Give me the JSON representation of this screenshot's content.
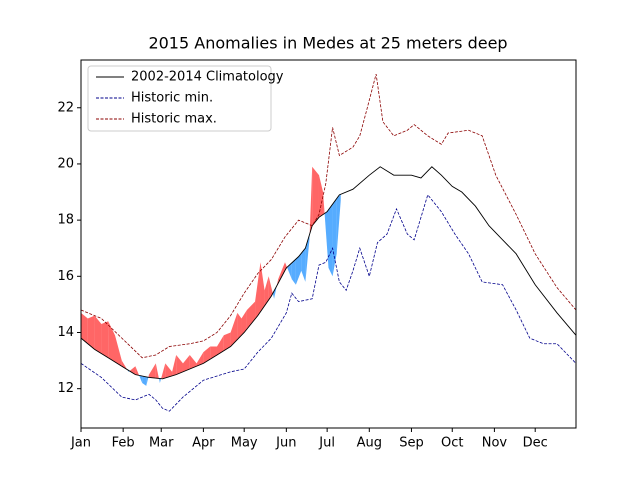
{
  "chart_data": {
    "type": "line",
    "title": "2015 Anomalies in Medes at 25 meters deep",
    "xlim": [
      0,
      364
    ],
    "ylim": [
      10.6,
      23.7
    ],
    "xticks": [
      {
        "value": 0,
        "label": "Jan"
      },
      {
        "value": 31,
        "label": "Feb"
      },
      {
        "value": 59,
        "label": "Mar"
      },
      {
        "value": 90,
        "label": "Apr"
      },
      {
        "value": 120,
        "label": "May"
      },
      {
        "value": 151,
        "label": "Jun"
      },
      {
        "value": 181,
        "label": "Jul"
      },
      {
        "value": 212,
        "label": "Aug"
      },
      {
        "value": 243,
        "label": "Sep"
      },
      {
        "value": 273,
        "label": "Oct"
      },
      {
        "value": 304,
        "label": "Nov"
      },
      {
        "value": 334,
        "label": "Dec"
      }
    ],
    "yticks": [
      12,
      14,
      16,
      18,
      20,
      22
    ],
    "legend": "upper left",
    "series": [
      {
        "name": "2002-2014 Climatology",
        "color": "#000000",
        "style": "solid",
        "x": [
          0,
          10,
          20,
          30,
          40,
          50,
          60,
          70,
          80,
          90,
          100,
          110,
          120,
          130,
          140,
          151,
          160,
          165,
          170,
          175,
          181,
          190,
          200,
          212,
          220,
          230,
          243,
          250,
          258,
          265,
          273,
          280,
          290,
          300,
          310,
          320,
          334,
          350,
          364
        ],
        "values": [
          13.8,
          13.4,
          13.1,
          12.8,
          12.5,
          12.4,
          12.35,
          12.5,
          12.7,
          12.9,
          13.2,
          13.5,
          14.0,
          14.6,
          15.3,
          16.3,
          16.7,
          17.0,
          17.8,
          18.1,
          18.3,
          18.9,
          19.1,
          19.6,
          19.9,
          19.6,
          19.6,
          19.5,
          19.9,
          19.6,
          19.2,
          19.0,
          18.5,
          17.8,
          17.3,
          16.8,
          15.7,
          14.7,
          13.9
        ]
      },
      {
        "name": "Historic min.",
        "color": "#00008b",
        "style": "dashed",
        "x": [
          0,
          15,
          30,
          40,
          50,
          55,
          60,
          65,
          75,
          90,
          110,
          120,
          130,
          140,
          151,
          155,
          160,
          170,
          175,
          180,
          185,
          190,
          195,
          200,
          205,
          212,
          218,
          225,
          232,
          240,
          245,
          255,
          265,
          275,
          285,
          295,
          310,
          320,
          330,
          340,
          350,
          364
        ],
        "values": [
          12.9,
          12.4,
          11.7,
          11.6,
          11.8,
          11.6,
          11.3,
          11.2,
          11.7,
          12.3,
          12.6,
          12.7,
          13.3,
          13.8,
          14.7,
          15.4,
          15.1,
          15.2,
          16.4,
          16.5,
          17.0,
          15.8,
          15.5,
          16.2,
          17.0,
          16.0,
          17.2,
          17.5,
          18.4,
          17.5,
          17.3,
          18.9,
          18.3,
          17.5,
          16.8,
          15.8,
          15.7,
          14.8,
          13.8,
          13.6,
          13.6,
          12.9
        ]
      },
      {
        "name": "Historic max.",
        "color": "#8b0000",
        "style": "dashed",
        "x": [
          0,
          15,
          30,
          45,
          55,
          65,
          80,
          90,
          100,
          110,
          120,
          130,
          140,
          150,
          160,
          170,
          175,
          180,
          185,
          190,
          200,
          205,
          210,
          217,
          222,
          230,
          240,
          245,
          255,
          265,
          270,
          285,
          295,
          305,
          320,
          334,
          350,
          364
        ],
        "values": [
          14.8,
          14.5,
          13.8,
          13.1,
          13.2,
          13.5,
          13.6,
          13.7,
          14.0,
          14.6,
          15.4,
          16.1,
          16.6,
          17.4,
          18.0,
          17.8,
          18.2,
          19.3,
          21.3,
          20.3,
          20.6,
          21.0,
          21.9,
          23.2,
          21.5,
          21.0,
          21.2,
          21.4,
          21.0,
          20.7,
          21.1,
          21.2,
          21.0,
          19.6,
          18.2,
          16.8,
          15.6,
          14.8
        ]
      }
    ],
    "anomaly": {
      "above_color": "#ff3333",
      "below_color": "#1e90ff",
      "x": [
        0,
        5,
        10,
        15,
        20,
        25,
        30,
        35,
        40,
        45,
        48,
        50,
        55,
        58,
        62,
        67,
        70,
        75,
        80,
        85,
        90,
        95,
        100,
        105,
        110,
        115,
        118,
        122,
        128,
        132,
        135,
        138,
        142,
        145,
        150,
        155,
        158,
        162,
        165,
        168,
        170,
        175,
        178,
        182,
        185,
        188,
        191
      ],
      "values": [
        14.7,
        14.5,
        14.6,
        14.3,
        14.4,
        13.9,
        13.0,
        12.6,
        12.8,
        12.2,
        12.1,
        12.5,
        12.9,
        12.2,
        12.9,
        12.6,
        13.2,
        12.9,
        13.2,
        12.9,
        13.3,
        13.5,
        13.5,
        13.9,
        14.0,
        14.7,
        14.5,
        14.8,
        15.1,
        16.5,
        15.5,
        16.0,
        15.2,
        15.9,
        16.5,
        15.9,
        15.7,
        16.2,
        15.8,
        17.3,
        19.9,
        19.6,
        19.0,
        16.3,
        16.0,
        16.8,
        18.7
      ]
    }
  }
}
